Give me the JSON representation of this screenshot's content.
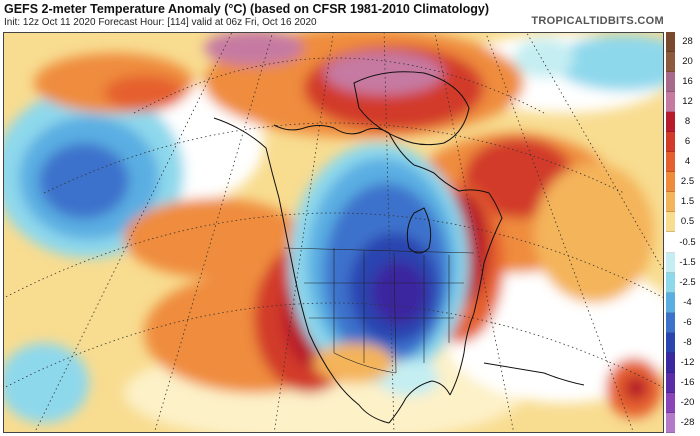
{
  "header": {
    "title": "GEFS 2-meter Temperature Anomaly (°C) (based on CFSR 1981-2010 Climatology)",
    "subtitle": "Init: 12z Oct 11 2020   Forecast Hour: [114]   valid at 06z Fri, Oct 16 2020",
    "brand": "TROPICALTIDBITS.COM"
  },
  "colorbar": [
    {
      "label": "28",
      "color": "#7a4a2e"
    },
    {
      "label": "20",
      "color": "#8c5a3c"
    },
    {
      "label": "16",
      "color": "#a86a8c"
    },
    {
      "label": "12",
      "color": "#c67aa2"
    },
    {
      "label": "8",
      "color": "#b81c2c"
    },
    {
      "label": "6",
      "color": "#d23a2a"
    },
    {
      "label": "4",
      "color": "#e5602e"
    },
    {
      "label": "2.5",
      "color": "#ef8c3c"
    },
    {
      "label": "1.5",
      "color": "#f4b45a"
    },
    {
      "label": "0.5",
      "color": "#f8dc90"
    },
    {
      "label": "-0.5",
      "color": "#ffffff"
    },
    {
      "label": "-1.5",
      "color": "#c4eef2"
    },
    {
      "label": "-2.5",
      "color": "#8ed8ec"
    },
    {
      "label": "-4",
      "color": "#5aaee2"
    },
    {
      "label": "-6",
      "color": "#3c72cc"
    },
    {
      "label": "-8",
      "color": "#2a44b0"
    },
    {
      "label": "-12",
      "color": "#3a28a0"
    },
    {
      "label": "-16",
      "color": "#5a2ca8"
    },
    {
      "label": "-20",
      "color": "#8a44b8"
    },
    {
      "label": "-28",
      "color": "#b27ac8"
    }
  ]
}
